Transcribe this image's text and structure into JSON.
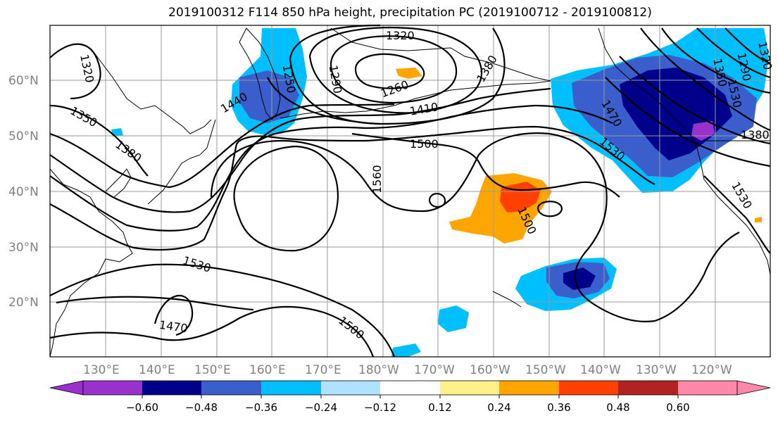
{
  "title": "2019100312 F114 850 hPa height, precipitation PC (2019100712 - 2019100812)",
  "lat_labels": [
    "60°N",
    "50°N",
    "40°N",
    "30°N",
    "20°N"
  ],
  "lon_labels": [
    "130°E",
    "140°E",
    "150°E",
    "160°E",
    "170°E",
    "180°W",
    "170°W",
    "160°W",
    "150°W",
    "140°W",
    "130°W",
    "120°W"
  ],
  "contour_labels": [
    "1320",
    "1290",
    "1260",
    "1250",
    "1380",
    "1440",
    "1350",
    "1410",
    "1500",
    "1470",
    "1530",
    "1320",
    "1380",
    "1560",
    "1500",
    "1530",
    "1470",
    "1500",
    "1290",
    "1350",
    "1380",
    "1530",
    "1320",
    "1530"
  ],
  "colorbar": {
    "tick_labels": [
      "−0.60",
      "−0.48",
      "−0.36",
      "−0.24",
      "−0.12",
      "0.12",
      "0.24",
      "0.36",
      "0.48",
      "0.60"
    ],
    "colors": [
      "#9932cc",
      "#00008b",
      "#3a5fcd",
      "#00bfff",
      "#b0e2ff",
      "#ffffff",
      "#fff08a",
      "#ffa500",
      "#ff4000",
      "#b22222",
      "#ff88aa"
    ]
  },
  "fill_colors": {
    "orange": "#ffa500",
    "red_orange": "#ff4000",
    "sky_blue": "#00bfff",
    "royal_blue": "#3a5fcd",
    "navy": "#00008b",
    "purple": "#9932cc"
  }
}
